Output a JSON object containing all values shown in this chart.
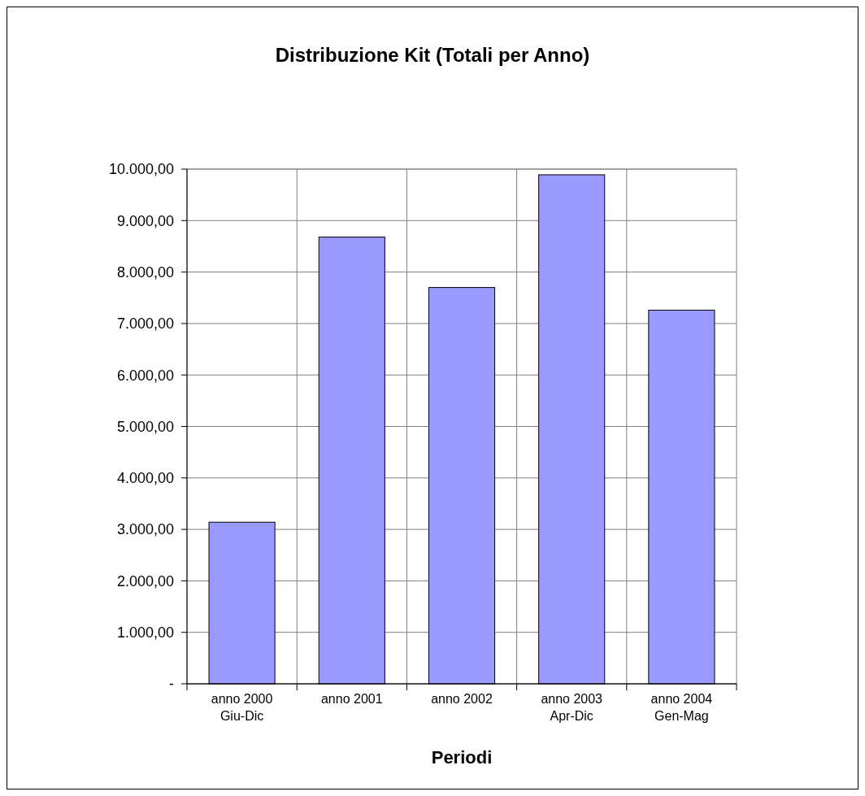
{
  "chart_data": {
    "type": "bar",
    "title": "Distribuzione Kit (Totali per Anno)",
    "xlabel": "Periodi",
    "categories": [
      "anno 2000\nGiu-Dic",
      "anno 2001",
      "anno 2002",
      "anno 2003\nApr-Dic",
      "anno 2004\nGen-Mag"
    ],
    "values": [
      3140,
      8680,
      7700,
      9890,
      7260
    ],
    "color": "#9999ff",
    "ylim": [
      0,
      10000
    ],
    "yticks": [
      {
        "value": 0,
        "label": "-"
      },
      {
        "value": 1000,
        "label": "1.000,00"
      },
      {
        "value": 2000,
        "label": "2.000,00"
      },
      {
        "value": 3000,
        "label": "3.000,00"
      },
      {
        "value": 4000,
        "label": "4.000,00"
      },
      {
        "value": 5000,
        "label": "5.000,00"
      },
      {
        "value": 6000,
        "label": "6.000,00"
      },
      {
        "value": 7000,
        "label": "7.000,00"
      },
      {
        "value": 8000,
        "label": "8.000,00"
      },
      {
        "value": 9000,
        "label": "9.000,00"
      },
      {
        "value": 10000,
        "label": "10.000,00"
      }
    ],
    "grid": true
  }
}
